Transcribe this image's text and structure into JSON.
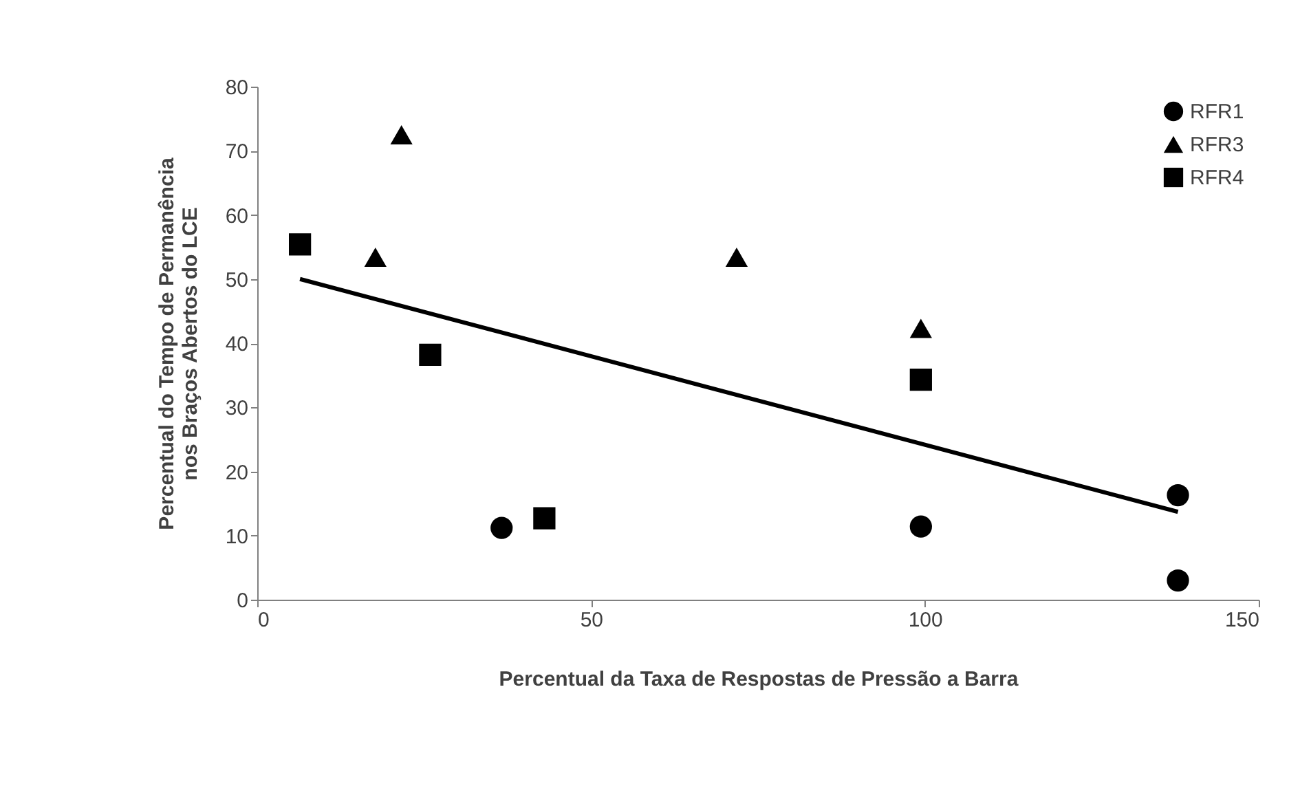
{
  "chart_data": {
    "type": "scatter",
    "xlabel": "Percentual da Taxa de Respostas de Pressão a Barra",
    "ylabel": "Percentual do Tempo de Permanência\nnos Braços  Abertos do LCE",
    "xlim": [
      0,
      150
    ],
    "xticks": [
      0,
      50,
      100,
      150
    ],
    "ylim": [
      0,
      80
    ],
    "yticks": [
      0,
      10,
      20,
      30,
      40,
      50,
      60,
      70,
      80
    ],
    "grid": false,
    "legend": "top right",
    "series": [
      {
        "name": "RFR1",
        "color": "#000000",
        "marker": "circle",
        "x": [
          36.6,
          99.4,
          137.9,
          137.9
        ],
        "values": [
          11.2,
          11.4,
          16.3,
          3.0
        ]
      },
      {
        "name": "RFR3",
        "color": "#000000",
        "marker": "triangle",
        "x": [
          21.6,
          17.7,
          71.8,
          99.4
        ],
        "values": [
          72.5,
          53.4,
          53.4,
          42.3
        ]
      },
      {
        "name": "RFR4",
        "color": "#000000",
        "marker": "square",
        "x": [
          6.4,
          25.9,
          43.0,
          99.4
        ],
        "values": [
          55.4,
          38.2,
          12.7,
          34.3
        ]
      },
      {
        "type": "line",
        "color": "#000000",
        "line_style": "solid",
        "x": [
          6.4,
          137.9
        ],
        "values": [
          50.0,
          13.7
        ]
      }
    ]
  }
}
